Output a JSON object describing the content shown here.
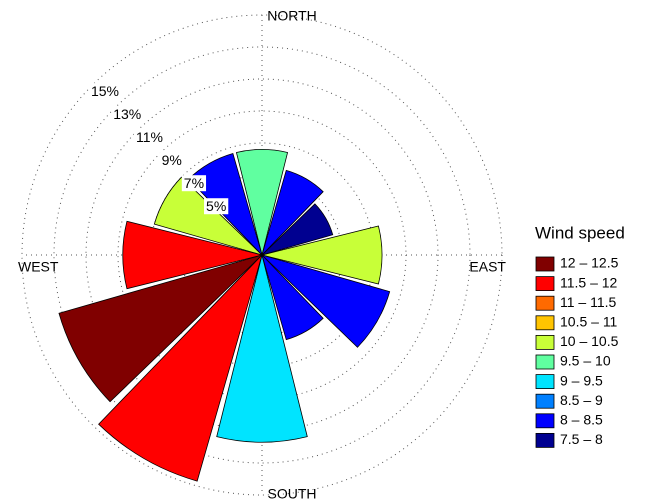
{
  "chart_data": {
    "type": "wind_rose",
    "categories": [
      "NORTH",
      null,
      null,
      "EAST",
      null,
      null,
      "SOUTH",
      null,
      null,
      "WEST",
      null,
      null
    ],
    "rlim": [
      0,
      15
    ],
    "rticks": [
      {
        "value": 5,
        "label": "5%"
      },
      {
        "value": 7,
        "label": "7%"
      },
      {
        "value": 9,
        "label": "9%"
      },
      {
        "value": 11,
        "label": "11%"
      },
      {
        "value": 13,
        "label": "13%"
      },
      {
        "value": 15,
        "label": "15%"
      }
    ],
    "legend_title": "Wind speed",
    "series": [
      {
        "name": "12 – 12.5",
        "color": "#800000",
        "values": [
          null,
          null,
          null,
          null,
          null,
          null,
          null,
          null,
          13.2,
          null,
          null,
          null
        ]
      },
      {
        "name": "11.5 – 12",
        "color": "#ff0000",
        "values": [
          null,
          null,
          null,
          null,
          null,
          null,
          null,
          14.7,
          null,
          8.7,
          null,
          null
        ]
      },
      {
        "name": "11 – 11.5",
        "color": "#ff6a00",
        "values": [
          null,
          null,
          null,
          null,
          null,
          null,
          null,
          null,
          null,
          null,
          null,
          null
        ]
      },
      {
        "name": "10.5 – 11",
        "color": "#ffc400",
        "values": [
          null,
          null,
          null,
          null,
          null,
          null,
          null,
          null,
          null,
          null,
          null,
          null
        ]
      },
      {
        "name": "10 – 10.5",
        "color": "#c8ff38",
        "values": [
          null,
          null,
          null,
          7.5,
          null,
          null,
          null,
          null,
          null,
          null,
          7,
          null
        ]
      },
      {
        "name": "9.5 – 10",
        "color": "#60ffa0",
        "values": [
          6.6,
          null,
          null,
          null,
          null,
          null,
          null,
          null,
          null,
          null,
          null,
          null
        ]
      },
      {
        "name": "9 – 9.5",
        "color": "#00e4ff",
        "values": [
          null,
          null,
          null,
          null,
          null,
          null,
          11.7,
          null,
          null,
          null,
          null,
          null
        ]
      },
      {
        "name": "8.5 – 9",
        "color": "#0080ff",
        "values": [
          null,
          null,
          null,
          null,
          null,
          null,
          null,
          null,
          null,
          null,
          null,
          null
        ]
      },
      {
        "name": "8 – 8.5",
        "color": "#0000ff",
        "values": [
          null,
          5.5,
          null,
          null,
          8.3,
          5.5,
          null,
          null,
          null,
          null,
          null,
          6.6
        ]
      },
      {
        "name": "7.5 – 8",
        "color": "#000090",
        "values": [
          null,
          null,
          4.6,
          null,
          null,
          null,
          null,
          null,
          null,
          null,
          null,
          null
        ]
      }
    ]
  }
}
